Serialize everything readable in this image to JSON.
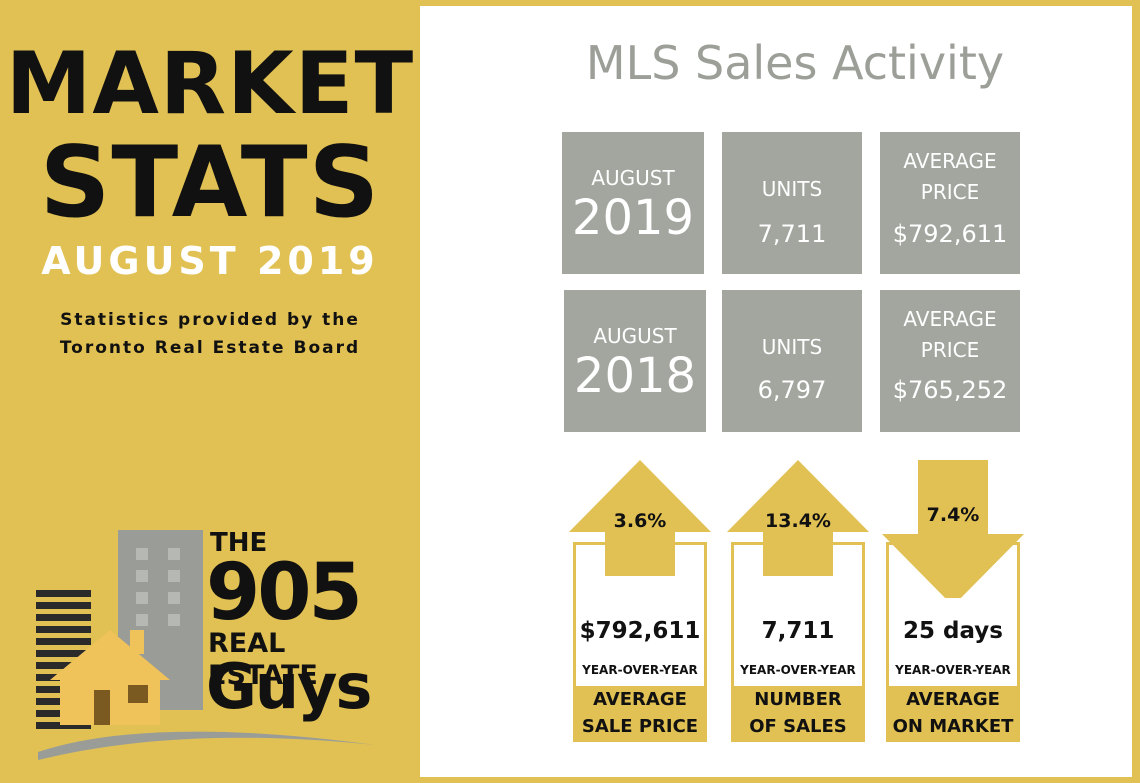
{
  "header": {
    "line1": "MARKET",
    "line2": "STATS",
    "date": "AUGUST 2019",
    "credit_line1": "Statistics provided by the",
    "credit_line2": "Toronto Real Estate Board"
  },
  "logo": {
    "the": "THE",
    "number": "905",
    "real_estate": "REAL ESTATE",
    "guys": "Guys"
  },
  "activity": {
    "title": "MLS Sales Activity",
    "rows": [
      {
        "period_label": "AUGUST",
        "year": "2019",
        "units_label": "UNITS",
        "units_value": "7,711",
        "price_label_1": "AVERAGE",
        "price_label_2": "PRICE",
        "price_value": "$792,611"
      },
      {
        "period_label": "AUGUST",
        "year": "2018",
        "units_label": "UNITS",
        "units_value": "6,797",
        "price_label_1": "AVERAGE",
        "price_label_2": "PRICE",
        "price_value": "$765,252"
      }
    ]
  },
  "changes": [
    {
      "direction": "up",
      "percent": "3.6%",
      "value": "$792,611",
      "yoy": "YEAR-OVER-YEAR",
      "label_1": "AVERAGE",
      "label_2": "SALE PRICE"
    },
    {
      "direction": "up",
      "percent": "13.4%",
      "value": "7,711",
      "yoy": "YEAR-OVER-YEAR",
      "label_1": "NUMBER",
      "label_2": "OF SALES"
    },
    {
      "direction": "down",
      "percent": "7.4%",
      "value": "25 days",
      "yoy": "YEAR-OVER-YEAR",
      "label_1": "AVERAGE",
      "label_2": "ON MARKET"
    }
  ],
  "colors": {
    "gold": "#e1c153",
    "gray_box": "#a3a59f",
    "title_gray": "#9c9e98"
  }
}
